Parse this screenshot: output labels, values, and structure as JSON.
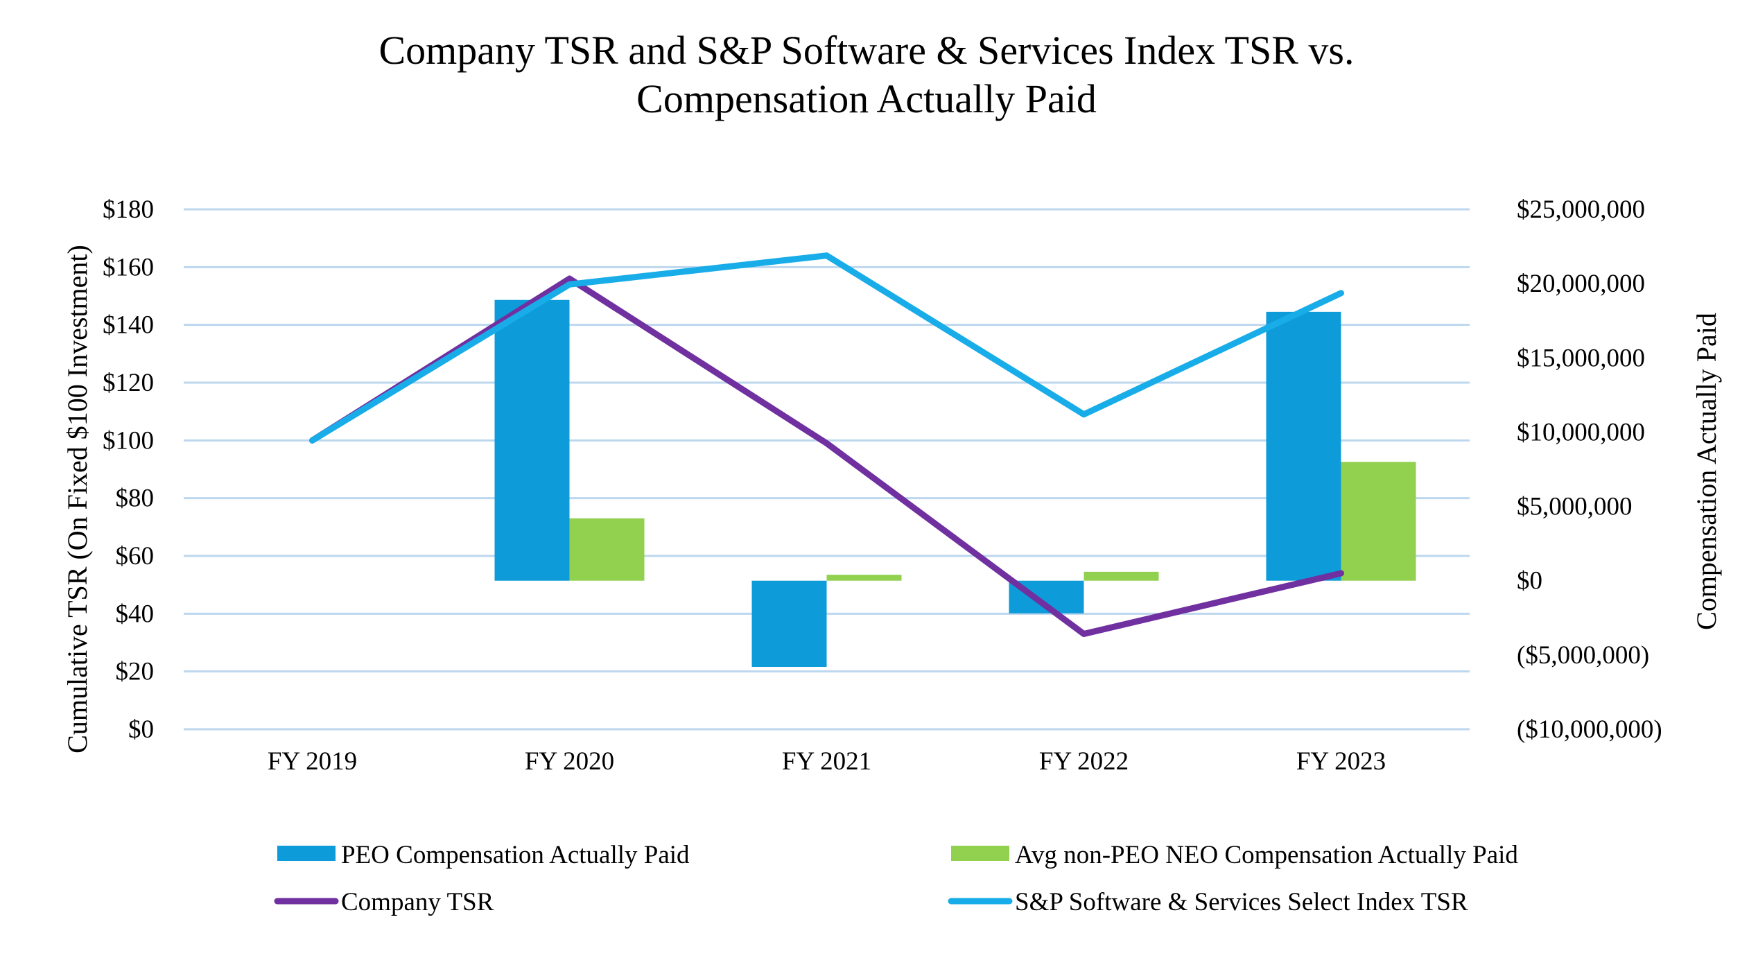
{
  "chart_data": {
    "type": "bar",
    "title": [
      "Company TSR and S&P Software & Services Index TSR vs.",
      "Compensation Actually Paid"
    ],
    "categories": [
      "FY 2019",
      "FY 2020",
      "FY 2021",
      "FY 2022",
      "FY 2023"
    ],
    "ylabel_left": "Cumulative  TSR (On Fixed $100 Investment)",
    "ylabel_right": "Compensation  Actually Paid",
    "ylim_left": [
      0,
      180
    ],
    "ylim_right": [
      -10000000,
      25000000
    ],
    "yticks_left": [
      "$0",
      "$20",
      "$40",
      "$60",
      "$80",
      "$100",
      "$120",
      "$140",
      "$160",
      "$180"
    ],
    "yticks_right": [
      "($10,000,000)",
      "($5,000,000)",
      "$0",
      "$5,000,000",
      "$10,000,000",
      "$15,000,000",
      "$20,000,000",
      "$25,000,000"
    ],
    "grid": true,
    "legend_position": "bottom",
    "bar_series": [
      {
        "name": "PEO Compensation Actually Paid",
        "axis": "right",
        "color": "#0E9BDA",
        "values": [
          null,
          18900000,
          -5800000,
          -2200000,
          18100000
        ]
      },
      {
        "name": "Avg non-PEO NEO Compensation Actually Paid",
        "axis": "right",
        "color": "#92D050",
        "values": [
          null,
          4200000,
          400000,
          600000,
          8000000
        ]
      }
    ],
    "line_series": [
      {
        "name": "Company TSR",
        "axis": "left",
        "color": "#7030A0",
        "values": [
          100,
          156,
          99,
          33,
          54
        ]
      },
      {
        "name": "S&P Software & Services Select Index TSR",
        "axis": "left",
        "color": "#18ADE8",
        "values": [
          100,
          154,
          164,
          109,
          151
        ]
      }
    ],
    "legend": [
      {
        "label": "PEO Compensation Actually Paid",
        "kind": "bar",
        "color": "#0E9BDA"
      },
      {
        "label": "Avg non-PEO NEO Compensation Actually Paid",
        "kind": "bar",
        "color": "#92D050"
      },
      {
        "label": "Company TSR",
        "kind": "line",
        "color": "#7030A0"
      },
      {
        "label": "S&P Software & Services Select Index TSR",
        "kind": "line",
        "color": "#18ADE8"
      }
    ]
  }
}
